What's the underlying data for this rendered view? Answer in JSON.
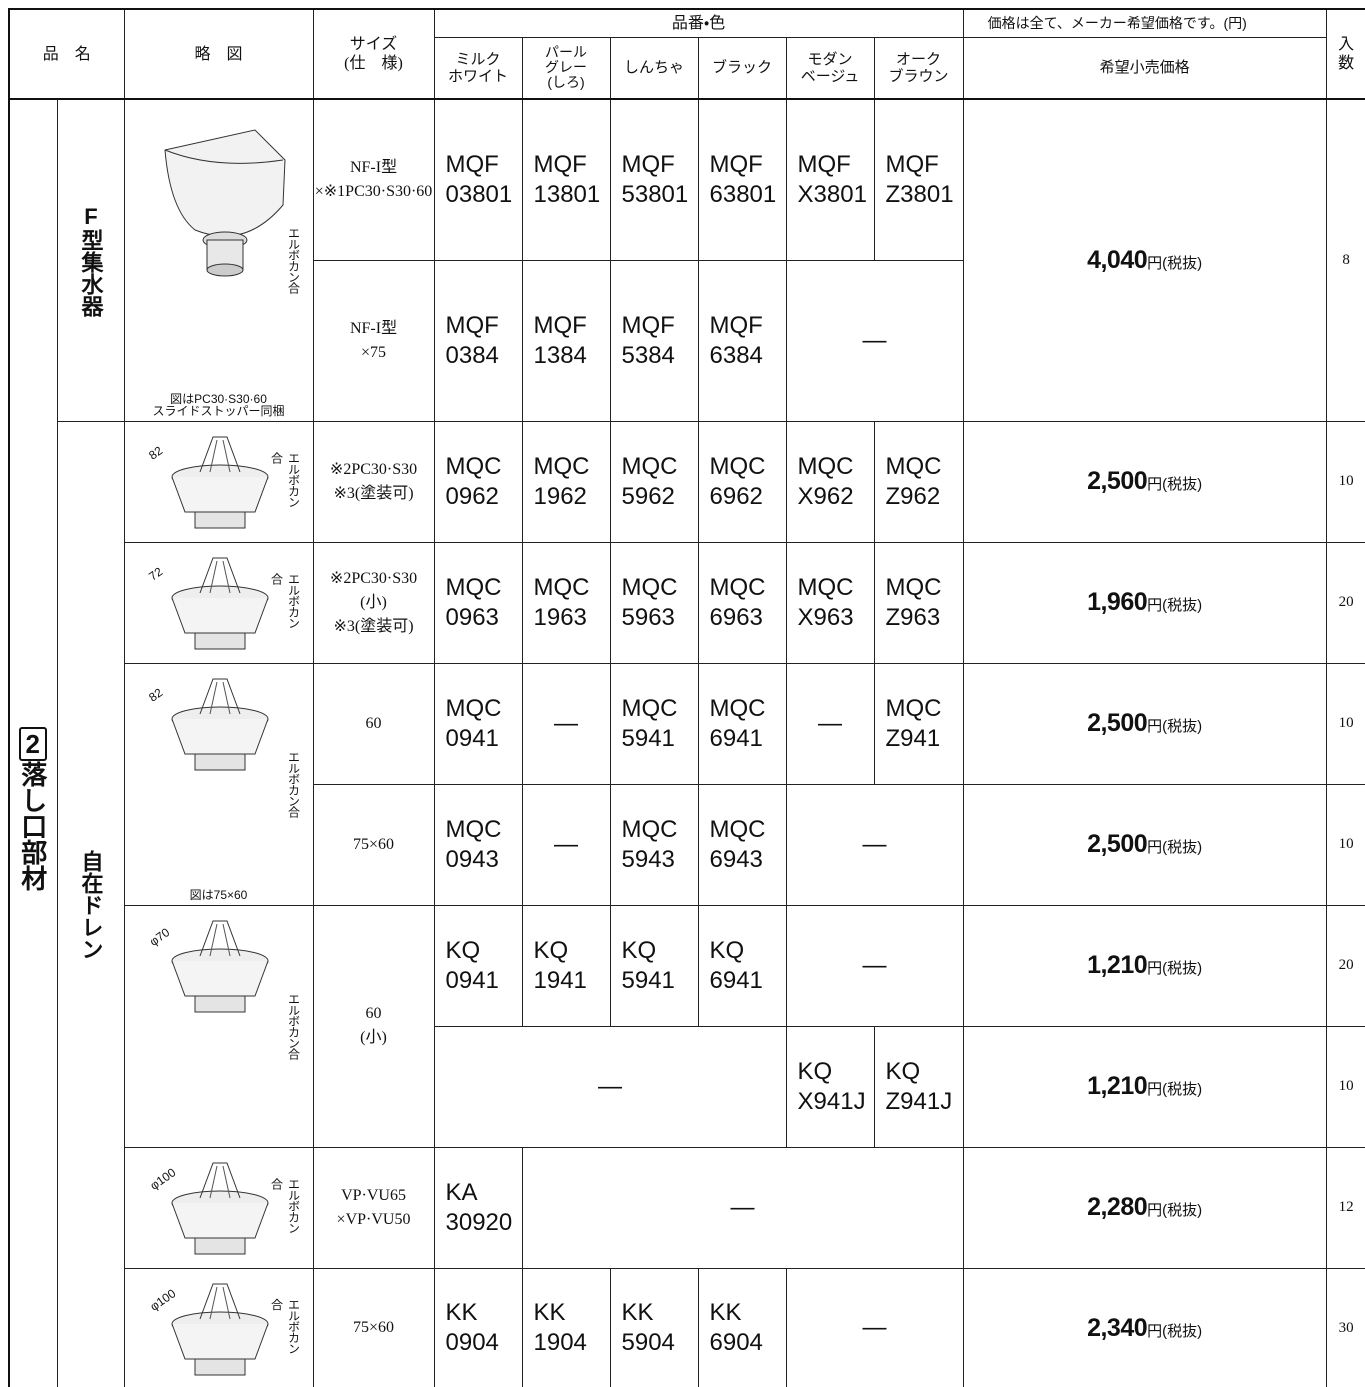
{
  "header": {
    "product_name": "品　名",
    "diagram": "略　図",
    "size": "サイズ\n(仕　様)",
    "color_header": "品番・色",
    "colors": [
      "ミルク\nホワイト",
      "パール\nグレー\n(しろ)",
      "しんちゃ",
      "ブラック",
      "モダン\nベージュ",
      "オーク\nブラウン"
    ],
    "price_note": "価格は全て、メーカー希望価格です。(円)",
    "price_header": "希望小売価格",
    "qty_header": "入\n数"
  },
  "section": {
    "number": "2",
    "name": "落し口部材"
  },
  "groups": [
    "F型集水器",
    "自在ドレン"
  ],
  "price_unit": "円(税抜)",
  "diagrams": [
    {
      "label": "エルボカン合",
      "caption": "図はPC30·S30·60\nスライドストッパー同梱"
    },
    {
      "label": "エルボカン合",
      "dimension": "82"
    },
    {
      "label": "エルボカン合",
      "dimension": "72"
    },
    {
      "label": "エルボカン合",
      "dimension": "82",
      "caption": "図は75×60"
    },
    {
      "label": "エルボカン合",
      "dimension": "φ70"
    },
    {
      "label": "エルボカン合",
      "dimension": "φ100"
    },
    {
      "label": "エルボカン合",
      "dimension": "φ100"
    }
  ],
  "rows": [
    {
      "size": "NF-I型\n×※1PC30·S30·60",
      "codes": [
        "MQF\n03801",
        "MQF\n13801",
        "MQF\n53801",
        "MQF\n63801",
        "MQF\nX3801",
        "MQF\nZ3801"
      ],
      "price": "4,040",
      "qty": "8"
    },
    {
      "size": "NF-I型\n×75",
      "codes": [
        "MQF\n0384",
        "MQF\n1384",
        "MQF\n5384",
        "MQF\n6384",
        "—"
      ]
    },
    {
      "size": "※2PC30·S30\n※3(塗装可)",
      "codes": [
        "MQC\n0962",
        "MQC\n1962",
        "MQC\n5962",
        "MQC\n6962",
        "MQC\nX962",
        "MQC\nZ962"
      ],
      "price": "2,500",
      "qty": "10"
    },
    {
      "size": "※2PC30·S30\n(小)\n※3(塗装可)",
      "codes": [
        "MQC\n0963",
        "MQC\n1963",
        "MQC\n5963",
        "MQC\n6963",
        "MQC\nX963",
        "MQC\nZ963"
      ],
      "price": "1,960",
      "qty": "20"
    },
    {
      "size": "60",
      "codes": [
        "MQC\n0941",
        "—",
        "MQC\n5941",
        "MQC\n6941",
        "—",
        "MQC\nZ941"
      ],
      "price": "2,500",
      "qty": "10"
    },
    {
      "size": "75×60",
      "codes": [
        "MQC\n0943",
        "—",
        "MQC\n5943",
        "MQC\n6943",
        "—"
      ],
      "price": "2,500",
      "qty": "10"
    },
    {
      "size": "60\n(小)",
      "codes": [
        "KQ\n0941",
        "KQ\n1941",
        "KQ\n5941",
        "KQ\n6941",
        "—"
      ],
      "price": "1,210",
      "qty": "20"
    },
    {
      "codes": [
        "—",
        "KQ\nX941J",
        "KQ\nZ941J"
      ],
      "price": "1,210",
      "qty": "10"
    },
    {
      "size": "VP·VU65\n×VP·VU50",
      "codes": [
        "KA\n30920",
        "—"
      ],
      "price": "2,280",
      "qty": "12"
    },
    {
      "size": "75×60",
      "codes": [
        "KK\n0904",
        "KK\n1904",
        "KK\n5904",
        "KK\n6904",
        "—"
      ],
      "price": "2,340",
      "qty": "30"
    }
  ]
}
